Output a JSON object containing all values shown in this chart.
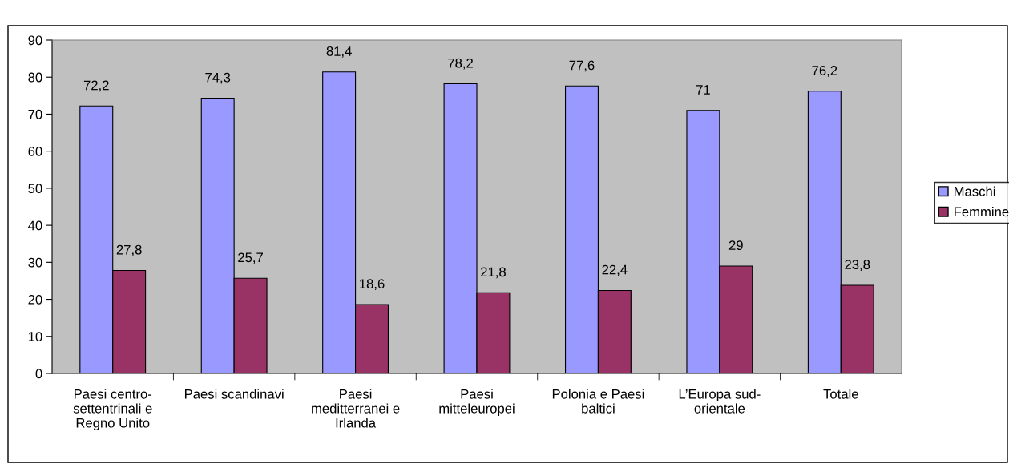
{
  "chart_data": {
    "type": "bar",
    "categories": [
      "Paesi centro-\nsettentrinali e\nRegno Unito",
      "Paesi scandinavi",
      "Paesi\nmeditterranei e\nIrlanda",
      "Paesi\nmitteleuropei",
      "Polonia e Paesi\nbaltici",
      "L’Europa sud-\norientale",
      "Totale"
    ],
    "series": [
      {
        "name": "Maschi",
        "color": "#9999ff",
        "values": [
          72.2,
          74.3,
          81.4,
          78.2,
          77.6,
          71,
          76.2
        ]
      },
      {
        "name": "Femmine",
        "color": "#993366",
        "values": [
          27.8,
          25.7,
          18.6,
          21.8,
          22.4,
          29,
          23.8
        ]
      }
    ],
    "value_labels": [
      [
        "72,2",
        "74,3",
        "81,4",
        "78,2",
        "77,6",
        "71",
        "76,2"
      ],
      [
        "27,8",
        "25,7",
        "18,6",
        "21,8",
        "22,4",
        "29",
        "23,8"
      ]
    ],
    "ylim": [
      0,
      90
    ],
    "yticks": [
      0,
      10,
      20,
      30,
      40,
      50,
      60,
      70,
      80,
      90
    ],
    "grid": false,
    "legend": "right"
  }
}
